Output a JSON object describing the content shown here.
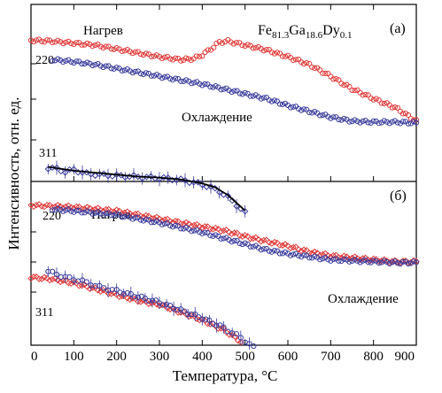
{
  "chart_data": [
    {
      "panel_label": "(а)",
      "type": "scatter",
      "title_parts": {
        "base1": "Fe",
        "sub1": "81.3",
        "base2": "Ga",
        "sub2": "18.6",
        "base3": "Dy",
        "sub3": "0.1"
      },
      "xlim": [
        0,
        900
      ],
      "annotations": {
        "heating": "Нагрев",
        "cooling": "Охлаждение",
        "peak220": "220",
        "peak311": "311"
      },
      "series": [
        {
          "name": "Нагрев",
          "marker": "circle",
          "x": [
            0,
            50,
            100,
            150,
            200,
            250,
            300,
            350,
            380,
            400,
            420,
            440,
            460,
            480,
            500,
            550,
            600,
            650,
            700,
            750,
            800,
            850,
            900
          ],
          "y": [
            0.95,
            0.94,
            0.92,
            0.9,
            0.86,
            0.82,
            0.78,
            0.75,
            0.76,
            0.8,
            0.86,
            0.93,
            0.94,
            0.92,
            0.9,
            0.85,
            0.78,
            0.7,
            0.58,
            0.45,
            0.35,
            0.26,
            0.12
          ]
        },
        {
          "name": "Охлаждение",
          "marker": "circle",
          "x": [
            50,
            100,
            150,
            200,
            250,
            300,
            350,
            400,
            450,
            500,
            550,
            600,
            650,
            700,
            750,
            800,
            850,
            900
          ],
          "y": [
            0.75,
            0.73,
            0.7,
            0.66,
            0.62,
            0.58,
            0.54,
            0.5,
            0.45,
            0.4,
            0.35,
            0.28,
            0.22,
            0.16,
            0.12,
            0.11,
            0.11,
            0.1
          ]
        },
        {
          "name": "311",
          "marker": "diamond",
          "error_bars": true,
          "x": [
            40,
            60,
            80,
            100,
            130,
            160,
            200,
            240,
            280,
            320,
            360,
            400,
            420,
            440,
            460,
            480,
            500
          ],
          "y": [
            -0.36,
            -0.37,
            -0.4,
            -0.38,
            -0.42,
            -0.43,
            -0.44,
            -0.45,
            -0.46,
            -0.47,
            -0.49,
            -0.53,
            -0.56,
            -0.6,
            -0.66,
            -0.74,
            -0.82
          ],
          "err": [
            0.05,
            0.05,
            0.05,
            0.06,
            0.05,
            0.06,
            0.06,
            0.06,
            0.06,
            0.06,
            0.06,
            0.07,
            0.07,
            0.07,
            0.08,
            0.08,
            0.08
          ]
        },
        {
          "name": "311 fit",
          "type": "line",
          "x": [
            40,
            100,
            150,
            200,
            250,
            300,
            350,
            400,
            430,
            460,
            480,
            500
          ],
          "y": [
            -0.35,
            -0.39,
            -0.41,
            -0.43,
            -0.45,
            -0.46,
            -0.48,
            -0.52,
            -0.56,
            -0.64,
            -0.72,
            -0.8
          ]
        }
      ]
    },
    {
      "panel_label": "(б)",
      "type": "scatter",
      "xlim": [
        0,
        900
      ],
      "xlabel": "Температура, °C",
      "xticks": [
        0,
        100,
        200,
        300,
        400,
        500,
        600,
        700,
        800,
        900
      ],
      "annotations": {
        "heating": "Нагрев",
        "cooling": "Охлаждение",
        "peak220": "220",
        "peak311": "311"
      },
      "series": [
        {
          "name": "Нагрев",
          "marker": "diamond",
          "x": [
            0,
            50,
            100,
            150,
            200,
            250,
            300,
            350,
            400,
            450,
            500,
            550,
            600,
            650,
            700,
            750,
            800,
            850,
            900
          ],
          "y": [
            0.62,
            0.61,
            0.6,
            0.58,
            0.56,
            0.52,
            0.48,
            0.44,
            0.4,
            0.36,
            0.3,
            0.25,
            0.2,
            0.14,
            0.1,
            0.08,
            0.06,
            0.04,
            0.04
          ]
        },
        {
          "name": "Охлаждение",
          "marker": "circle",
          "x": [
            50,
            100,
            150,
            200,
            250,
            300,
            350,
            400,
            450,
            500,
            550,
            600,
            650,
            700,
            750,
            800,
            850,
            900
          ],
          "y": [
            0.58,
            0.56,
            0.54,
            0.52,
            0.48,
            0.44,
            0.39,
            0.34,
            0.28,
            0.22,
            0.16,
            0.12,
            0.09,
            0.06,
            0.05,
            0.04,
            0.03,
            0.03
          ]
        },
        {
          "name": "311 нагрев",
          "marker": "diamond",
          "x": [
            0,
            50,
            100,
            150,
            200,
            250,
            300,
            350,
            400,
            450,
            470,
            490
          ],
          "y": [
            -0.12,
            -0.14,
            -0.18,
            -0.24,
            -0.3,
            -0.36,
            -0.4,
            -0.48,
            -0.56,
            -0.66,
            -0.72,
            -0.78
          ]
        },
        {
          "name": "311 охлаждение",
          "marker": "circle",
          "error_bars": true,
          "x": [
            40,
            80,
            120,
            160,
            200,
            250,
            300,
            350,
            400,
            450,
            490,
            520
          ],
          "y": [
            -0.06,
            -0.12,
            -0.16,
            -0.22,
            -0.26,
            -0.32,
            -0.38,
            -0.46,
            -0.54,
            -0.64,
            -0.74,
            -0.84
          ],
          "err": [
            0.05,
            0.05,
            0.05,
            0.06,
            0.06,
            0.06,
            0.06,
            0.07,
            0.07,
            0.07,
            0.08,
            0.08
          ]
        }
      ]
    }
  ],
  "ylabel": "Интенсивность, отн. ед.",
  "colors": {
    "heating": "#e03a3a",
    "cooling": "#3a3c9c",
    "fit": "#000000",
    "axis": "#000000"
  }
}
